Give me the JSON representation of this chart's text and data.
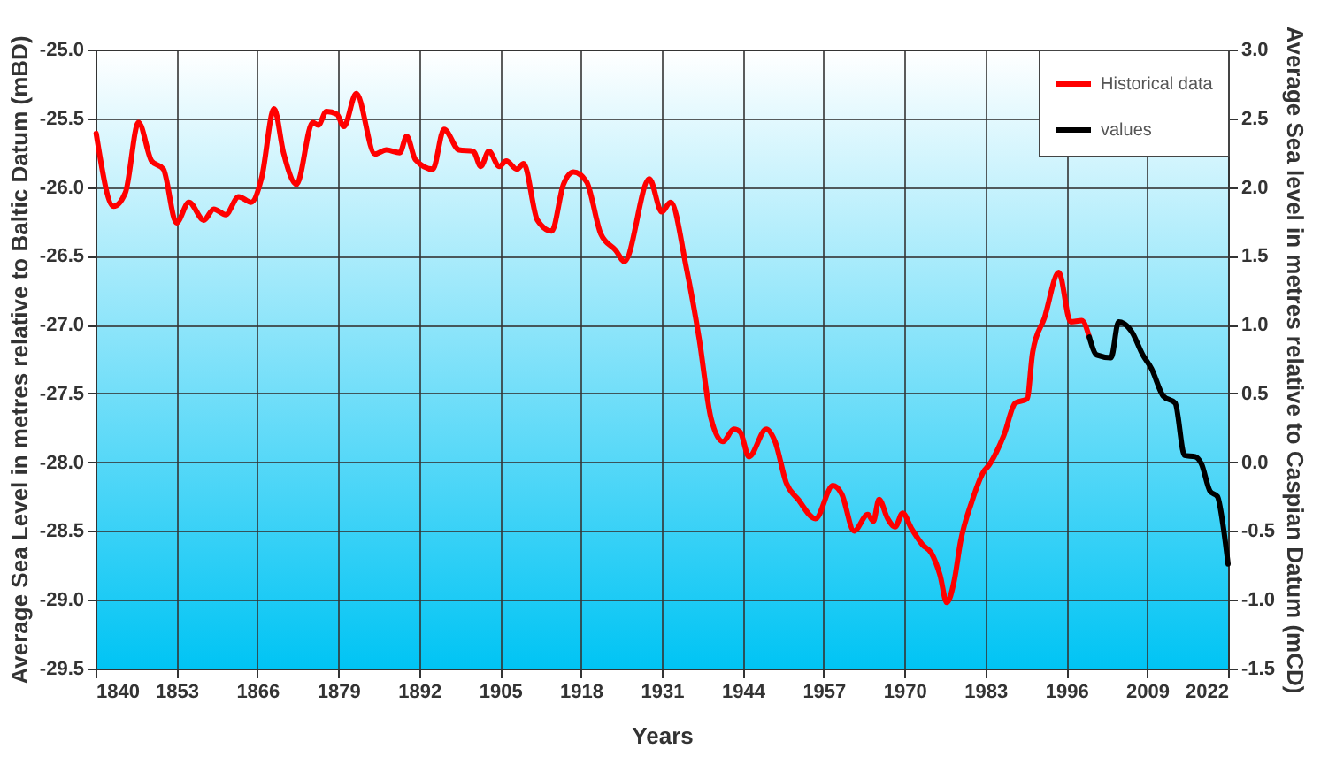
{
  "chart_data": {
    "type": "line",
    "xlabel": "Years",
    "ylabel": "Average Sea Level in metres relative to  Baltic Datum (mBD)",
    "y2label": "Average Sea  level in metres  relative to Caspian Datum (mCD)",
    "xlim": [
      1840,
      2022
    ],
    "xticks": [
      1840,
      1853,
      1866,
      1879,
      1892,
      1905,
      1918,
      1931,
      1944,
      1957,
      1970,
      1983,
      1996,
      2009,
      2022
    ],
    "ylim": [
      -29.5,
      -25
    ],
    "yticks": [
      {
        "value": -29.5,
        "label": "-29.5"
      },
      {
        "value": -29,
        "label": "-29.0"
      },
      {
        "value": -28.5,
        "label": "-28.5"
      },
      {
        "value": -28,
        "label": "-28.0"
      },
      {
        "value": -27.5,
        "label": "-27.5"
      },
      {
        "value": -27,
        "label": "-27.0"
      },
      {
        "value": -26.5,
        "label": "-26.5"
      },
      {
        "value": -26,
        "label": "-26.0"
      },
      {
        "value": -25.5,
        "label": "-25.5"
      },
      {
        "value": -25,
        "label": "-25.0"
      }
    ],
    "y2lim": [
      -1.5,
      3
    ],
    "y2ticks": [
      -1.5,
      {
        "value": -1,
        "label": "-1.0"
      },
      -0.5,
      {
        "value": 0,
        "label": "0.0"
      },
      0.5,
      {
        "value": 1,
        "label": "1.0"
      },
      1.5,
      {
        "value": 2,
        "label": "2.0"
      },
      2.5,
      {
        "value": 3,
        "label": "3.0"
      }
    ],
    "grid": true,
    "legend": "top right",
    "line_style": "solid",
    "marker": "none",
    "series": [
      {
        "name": "Historical data",
        "color": "#ff0000",
        "x": [
          1840.1,
          1842.9,
          1844.8,
          1846.9,
          1849.0,
          1850.9,
          1853.0,
          1855.0,
          1857.4,
          1859.0,
          1860.9,
          1863.0,
          1865.0,
          1866.7,
          1868.7,
          1870.2,
          1872.3,
          1874.9,
          1875.8,
          1877.1,
          1878.8,
          1879.9,
          1881.9,
          1884.9,
          1886.7,
          1888.9,
          1890.0,
          1891.4,
          1894.2,
          1896.0,
          1898.4,
          1900.7,
          1901.9,
          1903.2,
          1904.9,
          1906.0,
          1907.7,
          1908.8,
          1911.0,
          1913.3,
          1915.2,
          1916.8,
          1918.9,
          1921.2,
          1923.6,
          1925.0,
          1929.0,
          1931.0,
          1932.4,
          1935.0,
          1937.0,
          1938.9,
          1940.8,
          1942.6,
          1943.6,
          1945.0,
          1947.8,
          1949.2,
          1951.0,
          1952.9,
          1955.7,
          1958.5,
          1959.9,
          1961.9,
          1964.1,
          1965.0,
          1965.9,
          1967.3,
          1968.5,
          1969.7,
          1971.1,
          1972.9,
          1974.3,
          1975.7,
          1976.8,
          1978.0,
          1979.0,
          1980.8,
          1982.7,
          1983.6,
          1986.0,
          1987.8,
          1989.7,
          1990.6,
          1992.5,
          1994.8,
          1996.7,
          1998.5,
          1999.7
        ],
        "values": [
          -25.61,
          -26.14,
          -26.04,
          -25.53,
          -25.81,
          -25.87,
          -26.26,
          -26.11,
          -26.24,
          -26.16,
          -26.2,
          -26.07,
          -26.11,
          -25.93,
          -25.43,
          -25.75,
          -25.98,
          -25.53,
          -25.55,
          -25.45,
          -25.47,
          -25.56,
          -25.32,
          -25.76,
          -25.73,
          -25.75,
          -25.63,
          -25.8,
          -25.87,
          -25.58,
          -25.73,
          -25.74,
          -25.85,
          -25.74,
          -25.85,
          -25.81,
          -25.87,
          -25.83,
          -26.24,
          -26.32,
          -25.98,
          -25.89,
          -25.96,
          -26.34,
          -26.46,
          -26.54,
          -25.94,
          -26.18,
          -26.11,
          -26.6,
          -27.1,
          -27.68,
          -27.85,
          -27.76,
          -27.78,
          -27.96,
          -27.76,
          -27.85,
          -28.15,
          -28.27,
          -28.41,
          -28.17,
          -28.23,
          -28.5,
          -28.38,
          -28.43,
          -28.27,
          -28.41,
          -28.47,
          -28.37,
          -28.48,
          -28.6,
          -28.66,
          -28.82,
          -29.02,
          -28.86,
          -28.58,
          -28.29,
          -28.07,
          -28.02,
          -27.8,
          -27.57,
          -27.54,
          -27.2,
          -26.95,
          -26.62,
          -26.98,
          -26.97,
          -27.09
        ]
      },
      {
        "name": "values",
        "color": "#000000",
        "x": [
          1999.7,
          2000.9,
          2003.2,
          2004.4,
          2006.5,
          2008.3,
          2009.7,
          2011.6,
          2013.5,
          2015.0,
          2016.7,
          2017.7,
          2019.1,
          2020.3,
          2021.2,
          2022.0
        ],
        "values": [
          -27.09,
          -27.22,
          -27.24,
          -26.98,
          -27.05,
          -27.22,
          -27.32,
          -27.52,
          -27.57,
          -27.95,
          -27.96,
          -28.01,
          -28.21,
          -28.25,
          -28.46,
          -28.74
        ]
      }
    ]
  }
}
